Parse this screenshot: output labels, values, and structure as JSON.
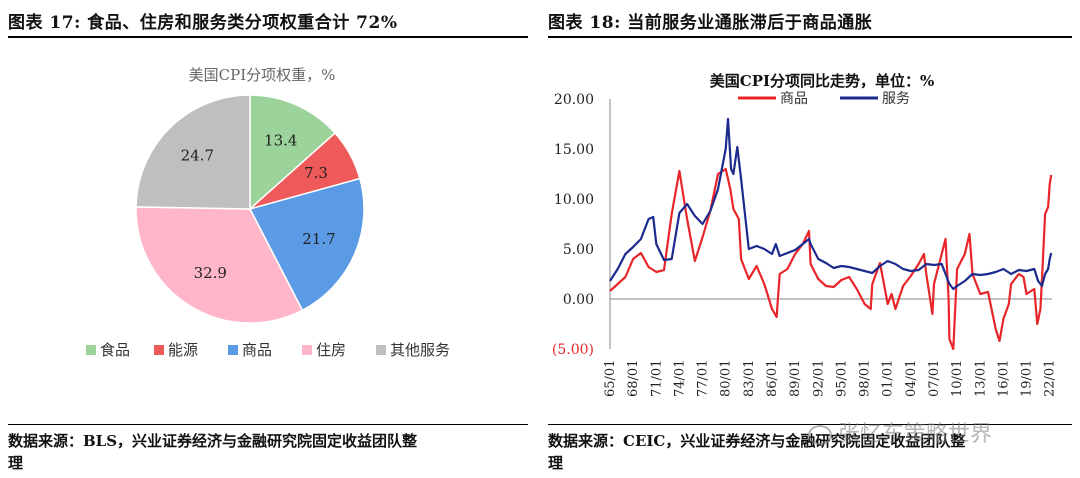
{
  "left_panel": {
    "figure_title": "图表 17:  食品、住房和服务类分项权重合计 72%",
    "source_line1": "数据来源：BLS，兴业证券经济与金融研究院固定收益团队整",
    "source_line2": "理"
  },
  "right_panel": {
    "figure_title": "图表 18:  当前服务业通胀滞后于商品通胀",
    "source_line1": "数据来源：CEIC，兴业证券经济与金融研究院固定收益团队整",
    "source_line2": "理"
  },
  "watermark": "张忆东策略世界",
  "colors": {
    "food": "#9BD39B",
    "energy": "#EE5A5A",
    "goods": "#5B9BE6",
    "housing": "#FFB6C8",
    "other": "#BFBFBF",
    "goods_line": "#E8262A",
    "services_line": "#1B2A8C"
  },
  "chart_data": [
    {
      "type": "pie",
      "title": "美国CPI分项权重，%",
      "categories": [
        "食品",
        "能源",
        "商品",
        "住房",
        "其他服务"
      ],
      "values": [
        13.4,
        7.3,
        21.7,
        32.9,
        24.7
      ],
      "value_labels": [
        "13.4",
        "7.3",
        "21.7",
        "32.9",
        "24.7"
      ],
      "legend_position": "bottom"
    },
    {
      "type": "line",
      "title": "美国CPI分项同比走势，单位：%",
      "xlabel": "",
      "ylabel": "",
      "ylim": [
        -5,
        20
      ],
      "y_ticks": [
        "20.00",
        "15.00",
        "10.00",
        "5.00",
        "0.00",
        "(5.00)"
      ],
      "x_ticks": [
        "65/01",
        "68/01",
        "71/01",
        "74/01",
        "77/01",
        "80/01",
        "83/01",
        "86/01",
        "89/01",
        "92/01",
        "95/01",
        "98/01",
        "01/01",
        "04/01",
        "07/01",
        "10/01",
        "13/01",
        "16/01",
        "19/01",
        "22/01"
      ],
      "x_range": [
        1965,
        2022.3
      ],
      "legend_position": "top",
      "series": [
        {
          "name": "商品",
          "points": [
            [
              1965,
              0.8
            ],
            [
              1966,
              1.5
            ],
            [
              1967,
              2.2
            ],
            [
              1968,
              4.0
            ],
            [
              1969,
              4.6
            ],
            [
              1970,
              3.2
            ],
            [
              1971,
              2.7
            ],
            [
              1972,
              2.9
            ],
            [
              1973,
              8.5
            ],
            [
              1974,
              12.8
            ],
            [
              1975,
              8.0
            ],
            [
              1976,
              3.8
            ],
            [
              1977,
              6.2
            ],
            [
              1978,
              8.8
            ],
            [
              1979,
              12.5
            ],
            [
              1980,
              13.0
            ],
            [
              1980.6,
              11.0
            ],
            [
              1981,
              9.0
            ],
            [
              1981.7,
              8.0
            ],
            [
              1982,
              4.0
            ],
            [
              1983,
              2.0
            ],
            [
              1984,
              3.3
            ],
            [
              1985,
              1.5
            ],
            [
              1986,
              -1.0
            ],
            [
              1986.6,
              -1.8
            ],
            [
              1987,
              2.5
            ],
            [
              1988,
              3.0
            ],
            [
              1989,
              4.5
            ],
            [
              1990,
              5.5
            ],
            [
              1990.8,
              6.8
            ],
            [
              1991,
              3.5
            ],
            [
              1992,
              2.0
            ],
            [
              1993,
              1.3
            ],
            [
              1994,
              1.2
            ],
            [
              1995,
              1.9
            ],
            [
              1996,
              2.2
            ],
            [
              1997,
              1.0
            ],
            [
              1998,
              -0.5
            ],
            [
              1998.8,
              -1.0
            ],
            [
              1999,
              1.5
            ],
            [
              2000,
              3.6
            ],
            [
              2001,
              -0.5
            ],
            [
              2001.5,
              0.5
            ],
            [
              2002,
              -1.0
            ],
            [
              2003,
              1.3
            ],
            [
              2004,
              2.3
            ],
            [
              2005,
              3.5
            ],
            [
              2005.7,
              4.5
            ],
            [
              2006,
              2.5
            ],
            [
              2006.8,
              -1.5
            ],
            [
              2007,
              1.5
            ],
            [
              2008,
              4.5
            ],
            [
              2008.5,
              6.0
            ],
            [
              2008.9,
              0.0
            ],
            [
              2009,
              -4.0
            ],
            [
              2009.5,
              -5.0
            ],
            [
              2010,
              3.0
            ],
            [
              2011,
              4.5
            ],
            [
              2011.6,
              6.5
            ],
            [
              2012,
              2.5
            ],
            [
              2013,
              0.5
            ],
            [
              2014,
              0.7
            ],
            [
              2015,
              -3.0
            ],
            [
              2015.5,
              -4.2
            ],
            [
              2016,
              -2.0
            ],
            [
              2016.7,
              -0.5
            ],
            [
              2017,
              1.5
            ],
            [
              2018,
              2.5
            ],
            [
              2018.6,
              2.2
            ],
            [
              2019,
              0.5
            ],
            [
              2020,
              1.0
            ],
            [
              2020.4,
              -2.5
            ],
            [
              2020.8,
              -1.0
            ],
            [
              2021,
              2.0
            ],
            [
              2021.4,
              8.5
            ],
            [
              2021.8,
              9.2
            ],
            [
              2022,
              11.5
            ],
            [
              2022.2,
              12.4
            ]
          ]
        },
        {
          "name": "服务",
          "points": [
            [
              1965,
              1.8
            ],
            [
              1966,
              3.0
            ],
            [
              1967,
              4.5
            ],
            [
              1968,
              5.2
            ],
            [
              1969,
              6.0
            ],
            [
              1970,
              8.0
            ],
            [
              1970.6,
              8.2
            ],
            [
              1971,
              5.5
            ],
            [
              1972,
              3.9
            ],
            [
              1973,
              4.0
            ],
            [
              1974,
              8.6
            ],
            [
              1975,
              9.5
            ],
            [
              1976,
              8.3
            ],
            [
              1977,
              7.5
            ],
            [
              1978,
              8.8
            ],
            [
              1979,
              11.0
            ],
            [
              1980,
              15.0
            ],
            [
              1980.3,
              18.0
            ],
            [
              1980.7,
              13.0
            ],
            [
              1981,
              12.5
            ],
            [
              1981.5,
              15.2
            ],
            [
              1982,
              12.0
            ],
            [
              1983,
              5.0
            ],
            [
              1984,
              5.3
            ],
            [
              1985,
              5.0
            ],
            [
              1986,
              4.5
            ],
            [
              1986.5,
              5.5
            ],
            [
              1987,
              4.3
            ],
            [
              1988,
              4.6
            ],
            [
              1989,
              4.9
            ],
            [
              1990,
              5.5
            ],
            [
              1990.8,
              6.0
            ],
            [
              1991,
              5.5
            ],
            [
              1992,
              4.0
            ],
            [
              1993,
              3.6
            ],
            [
              1994,
              3.1
            ],
            [
              1995,
              3.3
            ],
            [
              1996,
              3.2
            ],
            [
              1997,
              3.0
            ],
            [
              1998,
              2.8
            ],
            [
              1999,
              2.6
            ],
            [
              2000,
              3.3
            ],
            [
              2001,
              3.8
            ],
            [
              2002,
              3.5
            ],
            [
              2003,
              3.0
            ],
            [
              2004,
              2.8
            ],
            [
              2005,
              2.9
            ],
            [
              2006,
              3.5
            ],
            [
              2007,
              3.4
            ],
            [
              2008,
              3.5
            ],
            [
              2009,
              1.5
            ],
            [
              2009.5,
              1.0
            ],
            [
              2010,
              1.3
            ],
            [
              2011,
              1.8
            ],
            [
              2012,
              2.5
            ],
            [
              2013,
              2.4
            ],
            [
              2014,
              2.5
            ],
            [
              2015,
              2.7
            ],
            [
              2016,
              3.0
            ],
            [
              2017,
              2.5
            ],
            [
              2018,
              2.9
            ],
            [
              2019,
              2.8
            ],
            [
              2020,
              3.0
            ],
            [
              2020.5,
              1.8
            ],
            [
              2021,
              1.3
            ],
            [
              2021.4,
              2.5
            ],
            [
              2021.8,
              3.0
            ],
            [
              2022,
              4.0
            ],
            [
              2022.2,
              4.6
            ]
          ]
        }
      ]
    }
  ]
}
